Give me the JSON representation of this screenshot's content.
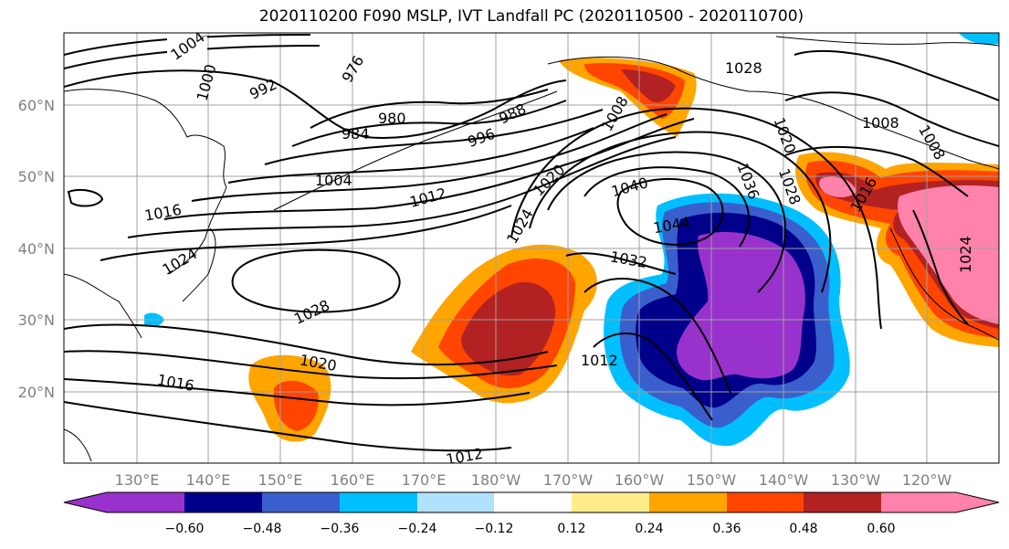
{
  "title": "2020110200 F090 MSLP, IVT Landfall PC (2020110500 - 2020110700)",
  "lat_ticks": [
    "60°N",
    "50°N",
    "40°N",
    "30°N",
    "20°N"
  ],
  "lon_ticks": [
    "130°E",
    "140°E",
    "150°E",
    "160°E",
    "170°E",
    "180°W",
    "170°W",
    "160°W",
    "150°W",
    "140°W",
    "130°W",
    "120°W"
  ],
  "contour_labels": [
    "1004",
    "1000",
    "992",
    "976",
    "980",
    "984",
    "988",
    "996",
    "1008",
    "1004",
    "1016",
    "1024",
    "1028",
    "1012",
    "1020",
    "1024",
    "1040",
    "1036",
    "1028",
    "1020",
    "1028",
    "1008",
    "1016",
    "1044",
    "1032",
    "1012",
    "1024",
    "1020",
    "1016",
    "1012",
    "1008"
  ],
  "colorbar": {
    "tick_labels": [
      "−0.60",
      "−0.48",
      "−0.36",
      "−0.24",
      "−0.12",
      "0.12",
      "0.24",
      "0.36",
      "0.48",
      "0.60"
    ],
    "colors": [
      "#9932cc",
      "#00008b",
      "#3a5fcd",
      "#00bfff",
      "#b0e2ff",
      "#ffffff",
      "#ffec8b",
      "#ffa500",
      "#ff4500",
      "#b22222",
      "#ff82ab"
    ]
  }
}
